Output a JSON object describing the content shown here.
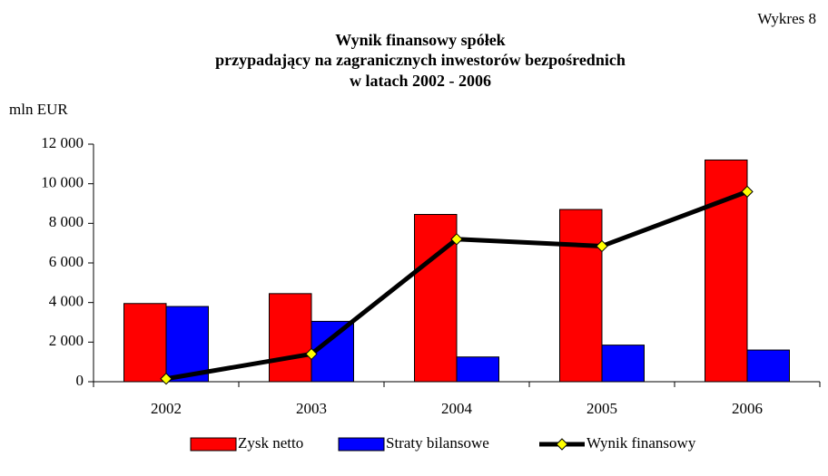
{
  "chart_data": {
    "type": "bar",
    "title": [
      "Wynik finansowy spółek",
      "przypadający na zagranicznych inwestorów bezpośrednich",
      "w latach 2002 - 2006"
    ],
    "annotation": "Wykres 8",
    "y_label": "mln EUR",
    "categories": [
      "2002",
      "2003",
      "2004",
      "2005",
      "2006"
    ],
    "series": [
      {
        "name": "Zysk netto",
        "type": "bar",
        "color": "#ff0000",
        "values": [
          3950,
          4450,
          8450,
          8700,
          11200
        ]
      },
      {
        "name": "Straty bilansowe",
        "type": "bar",
        "color": "#0000ff",
        "values": [
          3800,
          3050,
          1250,
          1850,
          1600
        ]
      },
      {
        "name": "Wynik finansowy",
        "type": "line",
        "color": "#000000",
        "marker_color": "#ffff00",
        "values": [
          150,
          1400,
          7200,
          6850,
          9600
        ]
      }
    ],
    "ylim": [
      0,
      12000
    ],
    "yticks": [
      0,
      {
        "value": 2000,
        "label": "2 000"
      },
      {
        "value": 4000,
        "label": "4 000"
      },
      {
        "value": 6000,
        "label": "6 000"
      },
      {
        "value": 8000,
        "label": "8 000"
      },
      {
        "value": 10000,
        "label": "10 000"
      },
      {
        "value": 12000,
        "label": "12 000"
      }
    ],
    "legend": "bottom"
  }
}
